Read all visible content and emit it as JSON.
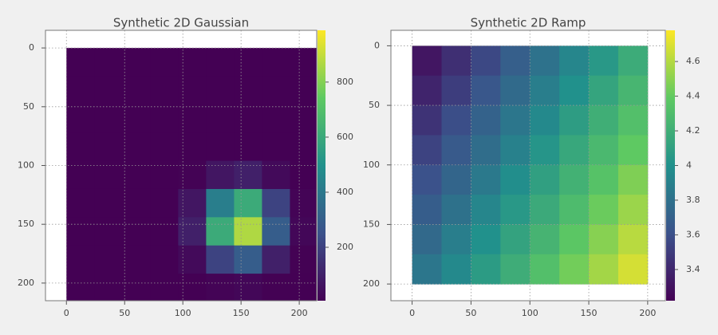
{
  "chart_data": [
    {
      "type": "heatmap",
      "title": "Synthetic 2D Gaussian",
      "colormap": "viridis",
      "grid": true,
      "x": [
        12,
        36,
        60,
        84,
        108,
        132,
        156,
        180,
        204
      ],
      "y": [
        12,
        36,
        60,
        84,
        108,
        132,
        156,
        180,
        204
      ],
      "z": [
        [
          0,
          0,
          0,
          0,
          0,
          0,
          0,
          0,
          0
        ],
        [
          0,
          0,
          0,
          0,
          0,
          0,
          0,
          0,
          0
        ],
        [
          0,
          0,
          0,
          0,
          0,
          0,
          0,
          0,
          0
        ],
        [
          0,
          0,
          0,
          0,
          0,
          3,
          4,
          1,
          0
        ],
        [
          0,
          0,
          0,
          0,
          11,
          70,
          100,
          34,
          3
        ],
        [
          0,
          0,
          0,
          3,
          70,
          423,
          606,
          206,
          16
        ],
        [
          0,
          0,
          0,
          4,
          100,
          606,
          868,
          295,
          24
        ],
        [
          0,
          0,
          0,
          1,
          34,
          206,
          295,
          100,
          8
        ],
        [
          0,
          0,
          0,
          0,
          3,
          16,
          24,
          8,
          1
        ]
      ],
      "xlim": [
        -18,
        215
      ],
      "ylim": [
        215,
        -15
      ],
      "xticks": [
        0,
        50,
        100,
        150,
        200
      ],
      "yticks": [
        0,
        50,
        100,
        150,
        200
      ],
      "clim": [
        6,
        988
      ],
      "cticks": [
        200,
        400,
        600,
        800
      ]
    },
    {
      "type": "heatmap",
      "title": "Synthetic 2D Ramp",
      "colormap": "viridis",
      "grid": true,
      "x": [
        12.5,
        37.5,
        62.5,
        87.5,
        112.5,
        137.5,
        162.5,
        187.5
      ],
      "y": [
        12.5,
        37.5,
        62.5,
        87.5,
        112.5,
        137.5,
        162.5,
        187.5
      ],
      "z": [
        [
          3.32,
          3.44,
          3.56,
          3.69,
          3.81,
          3.93,
          4.05,
          4.18
        ],
        [
          3.39,
          3.51,
          3.64,
          3.76,
          3.88,
          4.0,
          4.13,
          4.25
        ],
        [
          3.46,
          3.59,
          3.71,
          3.83,
          3.95,
          4.08,
          4.2,
          4.32
        ],
        [
          3.54,
          3.66,
          3.78,
          3.9,
          4.03,
          4.15,
          4.27,
          4.39
        ],
        [
          3.61,
          3.73,
          3.85,
          3.98,
          4.1,
          4.22,
          4.34,
          4.47
        ],
        [
          3.68,
          3.8,
          3.93,
          4.05,
          4.17,
          4.29,
          4.42,
          4.54
        ],
        [
          3.75,
          3.88,
          4.0,
          4.12,
          4.24,
          4.37,
          4.49,
          4.61
        ],
        [
          3.83,
          3.95,
          4.07,
          4.19,
          4.32,
          4.44,
          4.56,
          4.68
        ]
      ],
      "xlim": [
        -18,
        215
      ],
      "ylim": [
        214,
        -13
      ],
      "xticks": [
        0,
        50,
        100,
        150,
        200
      ],
      "yticks": [
        0,
        50,
        100,
        150,
        200
      ],
      "clim": [
        3.22,
        4.78
      ],
      "cticks": [
        3.4,
        3.6,
        3.8,
        4,
        4.2,
        4.4,
        4.6
      ]
    }
  ]
}
